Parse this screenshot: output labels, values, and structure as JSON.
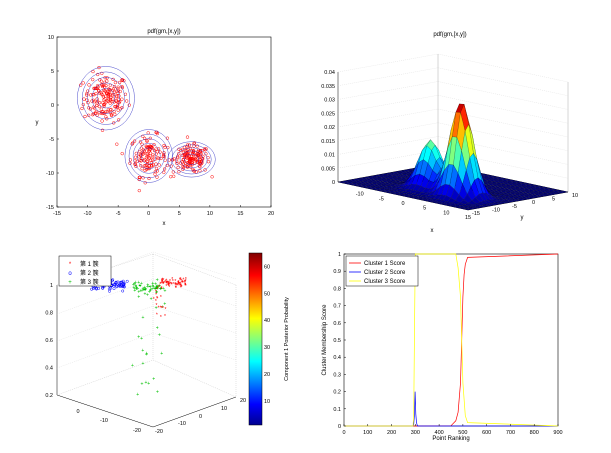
{
  "chart_data": [
    {
      "type": "scatter",
      "title": "pdf(gm,[x,y])",
      "xlabel": "x",
      "ylabel": "y",
      "xlim": [
        -15,
        20
      ],
      "ylim": [
        -15,
        10
      ],
      "xticks": [
        "-15",
        "-10",
        "-5",
        "0",
        "5",
        "10",
        "15",
        "20"
      ],
      "yticks": [
        "10",
        "5",
        "0",
        "-5",
        "-10",
        "-15"
      ],
      "marker_color": "#ff0000",
      "contour_color": "#2020c0",
      "clusters": [
        {
          "center": [
            -7.0,
            1.0
          ],
          "spread": [
            1.8,
            1.8
          ]
        },
        {
          "center": [
            0.0,
            -7.5
          ],
          "spread": [
            1.5,
            1.5
          ]
        },
        {
          "center": [
            7.0,
            -8.0
          ],
          "spread": [
            1.5,
            1.0
          ]
        }
      ]
    },
    {
      "type": "surface",
      "title": "pdf(gm,[x,y])",
      "xlabel": "x",
      "ylabel": "y",
      "xticks": [
        "-10",
        "-5",
        "0",
        "5",
        "10",
        "15"
      ],
      "yticks": [
        "-15",
        "-10",
        "-5",
        "0",
        "5",
        "10"
      ],
      "zticks": [
        "0",
        "0.005",
        "0.01",
        "0.015",
        "0.02",
        "0.025",
        "0.03",
        "0.035",
        "0.04"
      ],
      "zlim": [
        0,
        0.04
      ],
      "peaks": [
        {
          "x": -1.0,
          "y": -7.0,
          "height": 0.018
        },
        {
          "x": 7.0,
          "y": -8.0,
          "height": 0.035
        }
      ]
    },
    {
      "type": "scatter3d",
      "xticks": [
        "-20",
        "-10",
        "0"
      ],
      "yticks": [
        "-20",
        "-10",
        "0",
        "10",
        "20"
      ],
      "zticks": [
        "0.2",
        "0.4",
        "0.6",
        "0.8",
        "1"
      ],
      "legend": [
        "第 1 簇",
        "第 2 簇",
        "第 3 簇"
      ],
      "series_colors": [
        "#ff0000",
        "#0000ff",
        "#00c000"
      ],
      "colorbar_label": "Component 1 Posterior Probability",
      "colorbar_ticks": [
        "10",
        "20",
        "30",
        "40",
        "50",
        "60"
      ],
      "colorbar_range": [
        1,
        65
      ]
    },
    {
      "type": "line",
      "xlabel": "Point Ranking",
      "ylabel": "Cluster Membership Score",
      "xlim": [
        0,
        900
      ],
      "ylim": [
        0,
        1
      ],
      "xticks": [
        "0",
        "100",
        "200",
        "300",
        "400",
        "500",
        "600",
        "700",
        "800",
        "900"
      ],
      "yticks": [
        "0",
        "0.1",
        "0.2",
        "0.3",
        "0.4",
        "0.5",
        "0.6",
        "0.7",
        "0.8",
        "0.9",
        "1"
      ],
      "series": [
        {
          "name": "Cluster 1 Score",
          "color": "#ff0000",
          "x": [
            0,
            300,
            450,
            470,
            480,
            490,
            495,
            500,
            505,
            510,
            520,
            900
          ],
          "y": [
            0,
            0,
            0.002,
            0.03,
            0.08,
            0.25,
            0.5,
            0.75,
            0.88,
            0.94,
            0.98,
            1.0
          ]
        },
        {
          "name": "Cluster 2 Score",
          "color": "#0000ff",
          "x": [
            0,
            290,
            293,
            296,
            299,
            302,
            305,
            308,
            310,
            900
          ],
          "y": [
            0,
            0.0,
            0.01,
            0.06,
            0.2,
            0.07,
            0.02,
            0.005,
            0,
            0
          ]
        },
        {
          "name": "Cluster 3 Score",
          "color": "#ffff00",
          "x": [
            0,
            290,
            293,
            296,
            299,
            300,
            310,
            470,
            480,
            490,
            495,
            500,
            510,
            520,
            900
          ],
          "y": [
            0,
            0,
            0.05,
            0.5,
            0.9,
            1.0,
            1.0,
            1.0,
            0.92,
            0.75,
            0.5,
            0.25,
            0.06,
            0.02,
            0
          ]
        }
      ]
    }
  ]
}
